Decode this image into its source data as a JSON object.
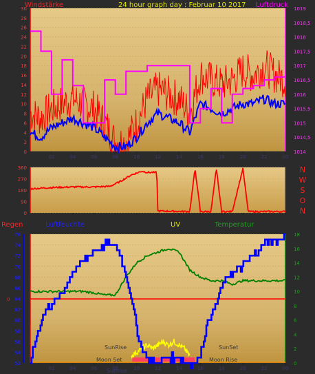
{
  "page_title": "24 hour graph day : Februar 10 2017",
  "colors": {
    "wind_avg": "#0000ff",
    "wind_gust": "#ff0000",
    "pressure": "#ff00ff",
    "wind_dir": "#ff0000",
    "humidity": "#0000ff",
    "temperature": "#008000",
    "rain": "#ff0000",
    "uv": "#ffff00",
    "sun": "#ff9900"
  },
  "chart_data": [
    {
      "type": "line",
      "title": "24 hour graph day : Februar 10 2017",
      "left_label": "Windstärke",
      "right_label": "Luftdruck",
      "y_left_ticks": [
        "0",
        "2",
        "4",
        "6",
        "8",
        "10",
        "12",
        "14",
        "16",
        "18",
        "20",
        "22",
        "24",
        "26",
        "28",
        "30"
      ],
      "y_right_ticks": [
        "1014",
        "1014,5",
        "1015",
        "1015,5",
        "1016",
        "1016,5",
        "1017",
        "1017,5",
        "1018",
        "1018,5",
        "1019"
      ],
      "x_ticks": [
        "02",
        "04",
        "06",
        "08",
        "10",
        "12",
        "14",
        "16",
        "18",
        "20",
        "22",
        "00"
      ],
      "ylim_left": [
        0,
        30
      ],
      "ylim_right": [
        1014,
        1019
      ],
      "series": [
        {
          "name": "Windstärke (avg)",
          "x": [
            0,
            1,
            2,
            3,
            4,
            5,
            6,
            7,
            8,
            9,
            10,
            11,
            12,
            13,
            14,
            15,
            16,
            17,
            18,
            19,
            20,
            21,
            22,
            23,
            24
          ],
          "y": [
            4,
            3,
            5,
            6,
            7,
            6,
            5,
            3,
            1,
            1,
            3,
            6,
            8,
            7,
            6,
            4,
            10,
            9,
            8,
            9,
            10,
            10,
            11,
            10,
            10
          ]
        },
        {
          "name": "Windstärke (gust)",
          "x": [
            0,
            1,
            2,
            3,
            4,
            5,
            6,
            7,
            8,
            9,
            10,
            11,
            12,
            13,
            14,
            15,
            16,
            17,
            18,
            19,
            20,
            21,
            22,
            23,
            24
          ],
          "y": [
            8,
            7,
            9,
            10,
            11,
            10,
            9,
            6,
            2,
            2,
            6,
            11,
            13,
            12,
            11,
            8,
            16,
            15,
            14,
            15,
            17,
            16,
            18,
            16,
            15
          ]
        },
        {
          "name": "Luftdruck",
          "x": [
            0,
            1,
            2,
            3,
            4,
            5,
            6,
            7,
            8,
            9,
            10,
            11,
            12,
            13,
            14,
            15,
            16,
            17,
            18,
            19,
            20,
            21,
            22,
            23,
            24
          ],
          "y": [
            1018.2,
            1017.5,
            1016,
            1017.2,
            1016.3,
            1015,
            1015,
            1016.5,
            1016,
            1016.8,
            1016.8,
            1017,
            1017,
            1017,
            1017,
            1015,
            1015.5,
            1016.2,
            1015,
            1016,
            1016.2,
            1016.3,
            1016.5,
            1016.6,
            1016.7
          ]
        }
      ]
    },
    {
      "type": "line",
      "title": "",
      "y_ticks": [
        "360",
        "270",
        "180",
        "90",
        "0"
      ],
      "ylim": [
        0,
        360
      ],
      "direction_labels": [
        "N",
        "W",
        "S",
        "O",
        "N"
      ],
      "x_ticks": [
        "02",
        "04",
        "06",
        "08",
        "10",
        "12",
        "14",
        "16",
        "18",
        "20",
        "22",
        "00"
      ],
      "series": [
        {
          "name": "Windrichtung",
          "x": [
            0,
            2,
            4,
            6,
            7.5,
            8.5,
            9.5,
            10.5,
            11,
            11.9,
            12,
            15,
            15.5,
            16,
            17,
            17.5,
            18,
            19,
            20,
            20.5,
            21,
            24
          ],
          "y": [
            190,
            200,
            205,
            205,
            210,
            250,
            300,
            330,
            320,
            320,
            15,
            10,
            350,
            10,
            10,
            350,
            10,
            10,
            350,
            10,
            10,
            10
          ]
        }
      ]
    },
    {
      "type": "line",
      "left_label": "Regen",
      "label_humidity": "Luftfeuchte",
      "label_uv": "UV",
      "label_temp": "Temperatur",
      "y_left_ticks": [
        "52",
        "54",
        "56",
        "58",
        "60",
        "62",
        "64",
        "66",
        "68",
        "70",
        "72",
        "74",
        "76"
      ],
      "y_right_ticks": [
        "0",
        "2",
        "4",
        "6",
        "8",
        "10",
        "12",
        "14",
        "16",
        "18"
      ],
      "rain_zero_label": "0",
      "x_ticks": [
        "02",
        "04",
        "06",
        "08",
        "10",
        "12",
        "14",
        "16",
        "18",
        "20",
        "22",
        "00"
      ],
      "ylim_left": [
        52,
        76
      ],
      "ylim_right": [
        0,
        18
      ],
      "annotations": [
        "SunRise",
        "SunSet",
        "Moon Set",
        "Moon Rise",
        "Sunrise"
      ],
      "series": [
        {
          "name": "Luftfeuchte",
          "x": [
            0,
            0.5,
            1,
            1.5,
            2,
            2.5,
            3,
            3.5,
            4,
            5,
            6,
            7,
            8,
            8.5,
            9,
            9.5,
            10,
            10.5,
            11,
            11.5,
            12,
            13,
            14,
            15,
            15.5,
            16,
            16.5,
            17,
            17.5,
            18,
            18.5,
            19,
            20,
            21,
            21.5,
            22,
            22.5,
            23,
            23.5,
            24
          ],
          "y": [
            52,
            56,
            60,
            62,
            63,
            64,
            65,
            67,
            69,
            71,
            73,
            74,
            74,
            72,
            68,
            64,
            58,
            55,
            53,
            52,
            52,
            53,
            53,
            52,
            52,
            54,
            58,
            61,
            63,
            66,
            68,
            69,
            70,
            72,
            73,
            74,
            75,
            75,
            75,
            76
          ]
        },
        {
          "name": "Temperatur",
          "x": [
            0,
            1,
            2,
            3,
            4,
            5,
            6,
            7,
            8,
            9,
            10,
            11,
            12,
            13,
            14,
            15,
            16,
            17,
            18,
            19,
            20,
            21,
            22,
            23,
            24
          ],
          "y": [
            10,
            10,
            10,
            10,
            10,
            10,
            9.8,
            9.5,
            9.5,
            12,
            14,
            15,
            15.5,
            16,
            15.5,
            13,
            12,
            11.5,
            11.5,
            11,
            11.5,
            11.5,
            11.5,
            11.5,
            11.5
          ]
        },
        {
          "name": "UV",
          "x": [
            9.5,
            10,
            10.5,
            11,
            11.5,
            12,
            12.5,
            13,
            13.5,
            14,
            14.5,
            15
          ],
          "y": [
            1,
            1.5,
            2,
            2.5,
            2,
            2.5,
            3,
            2.5,
            3,
            2.5,
            2,
            1
          ]
        },
        {
          "name": "Regen",
          "x": [
            0,
            24
          ],
          "y": [
            0,
            0
          ]
        }
      ]
    }
  ]
}
